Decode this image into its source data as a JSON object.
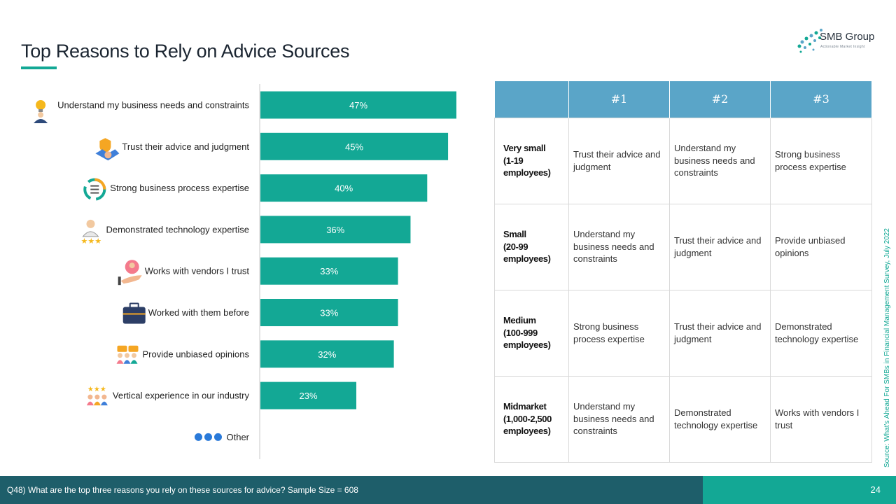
{
  "title": "Top Reasons to Rely on Advice Sources",
  "logo": {
    "name": "SMB Group",
    "tagline": "Actionable Market Insight"
  },
  "colors": {
    "accent": "#13a895",
    "header": "#5aa5c8",
    "footer": "#1e5e6a"
  },
  "chart_data": {
    "type": "bar",
    "orientation": "horizontal",
    "categories": [
      "Understand my business needs and constraints",
      "Trust their advice and judgment",
      "Strong business process expertise",
      "Demonstrated technology expertise",
      "Works with vendors I trust",
      "Worked with them before",
      "Provide unbiased opinions",
      "Vertical experience in our industry",
      "Other"
    ],
    "values": [
      47,
      45,
      40,
      36,
      33,
      33,
      32,
      23,
      null
    ],
    "data_labels": [
      "47%",
      "45%",
      "40%",
      "36%",
      "33%",
      "33%",
      "32%",
      "23%",
      ""
    ],
    "icons": [
      "lightbulb-person-icon",
      "handshake-shield-icon",
      "process-cycle-icon",
      "technology-expert-icon",
      "vendor-trust-icon",
      "briefcase-icon",
      "unbiased-opinions-icon",
      "industry-experience-icon",
      "other-dots-icon"
    ],
    "xlim": [
      0,
      50
    ],
    "bar_color": "#13a895"
  },
  "table": {
    "headers": [
      "",
      "#1",
      "#2",
      "#3"
    ],
    "rows": [
      {
        "segment": [
          "Very small",
          "(1-19",
          "employees)"
        ],
        "first": "Trust their advice and judgment",
        "second": "Understand my business needs and constraints",
        "third": "Strong business process expertise"
      },
      {
        "segment": [
          "Small",
          "(20-99",
          "employees)"
        ],
        "first": "Understand my business needs and constraints",
        "second": "Trust their advice and judgment",
        "third": "Provide unbiased opinions"
      },
      {
        "segment": [
          "Medium",
          "(100-999",
          "employees)"
        ],
        "first": "Strong business process expertise",
        "second": "Trust their advice and judgment",
        "third": "Demonstrated technology expertise"
      },
      {
        "segment": [
          "Midmarket",
          "(1,000-2,500",
          "employees)"
        ],
        "first": "Understand my business needs and constraints",
        "second": "Demonstrated technology expertise",
        "third": "Works with vendors I trust"
      }
    ]
  },
  "source": "Source: What's Ahead For SMBs in Financial Management Survey, July 2022",
  "footer": {
    "question": "Q48) What are the top three reasons you rely on these sources for advice? Sample Size = 608",
    "page": "24"
  }
}
